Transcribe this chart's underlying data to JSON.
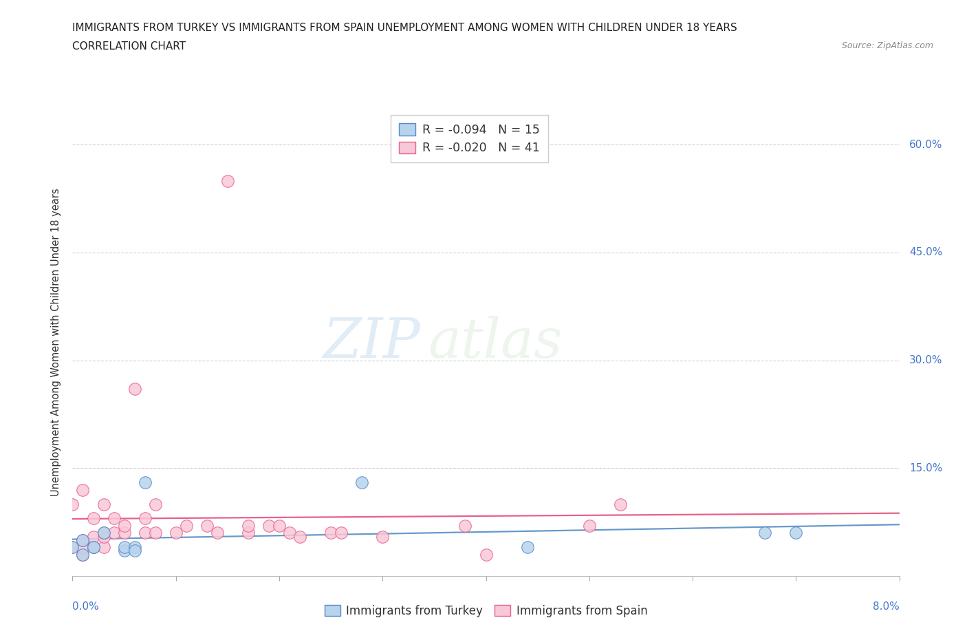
{
  "title_line1": "IMMIGRANTS FROM TURKEY VS IMMIGRANTS FROM SPAIN UNEMPLOYMENT AMONG WOMEN WITH CHILDREN UNDER 18 YEARS",
  "title_line2": "CORRELATION CHART",
  "source_text": "Source: ZipAtlas.com",
  "ylabel": "Unemployment Among Women with Children Under 18 years",
  "watermark_text": "ZIP",
  "watermark_text2": "atlas",
  "xlim": [
    0.0,
    0.08
  ],
  "ylim": [
    0.0,
    0.65
  ],
  "ytick_positions": [
    0.15,
    0.3,
    0.45,
    0.6
  ],
  "ytick_labels": [
    "15.0%",
    "30.0%",
    "45.0%",
    "60.0%"
  ],
  "background_color": "#ffffff",
  "turkey_fill": "#b8d4ec",
  "turkey_edge": "#5588cc",
  "spain_fill": "#f9c8d8",
  "spain_edge": "#e8608a",
  "turkey_line": "#6699cc",
  "spain_line": "#e8608a",
  "label_color": "#4477cc",
  "title_color": "#222222",
  "grid_color": "#cccccc",
  "legend_turkey_R": "R = -0.094",
  "legend_turkey_N": "N = 15",
  "legend_spain_R": "R = -0.020",
  "legend_spain_N": "N = 41",
  "turkey_x": [
    0.0,
    0.001,
    0.001,
    0.002,
    0.002,
    0.003,
    0.005,
    0.005,
    0.006,
    0.006,
    0.007,
    0.028,
    0.044,
    0.067,
    0.07
  ],
  "turkey_y": [
    0.04,
    0.03,
    0.05,
    0.04,
    0.04,
    0.06,
    0.035,
    0.04,
    0.04,
    0.035,
    0.13,
    0.13,
    0.04,
    0.06,
    0.06
  ],
  "spain_x": [
    0.0,
    0.0,
    0.001,
    0.001,
    0.001,
    0.001,
    0.001,
    0.002,
    0.002,
    0.002,
    0.003,
    0.003,
    0.003,
    0.003,
    0.004,
    0.004,
    0.005,
    0.005,
    0.006,
    0.007,
    0.007,
    0.008,
    0.008,
    0.01,
    0.011,
    0.013,
    0.014,
    0.015,
    0.017,
    0.017,
    0.019,
    0.02,
    0.021,
    0.022,
    0.025,
    0.026,
    0.03,
    0.038,
    0.04,
    0.05,
    0.053
  ],
  "spain_y": [
    0.04,
    0.1,
    0.03,
    0.03,
    0.04,
    0.05,
    0.12,
    0.04,
    0.055,
    0.08,
    0.04,
    0.055,
    0.06,
    0.1,
    0.06,
    0.08,
    0.06,
    0.07,
    0.26,
    0.06,
    0.08,
    0.06,
    0.1,
    0.06,
    0.07,
    0.07,
    0.06,
    0.55,
    0.06,
    0.07,
    0.07,
    0.07,
    0.06,
    0.055,
    0.06,
    0.06,
    0.055,
    0.07,
    0.03,
    0.07,
    0.1
  ]
}
